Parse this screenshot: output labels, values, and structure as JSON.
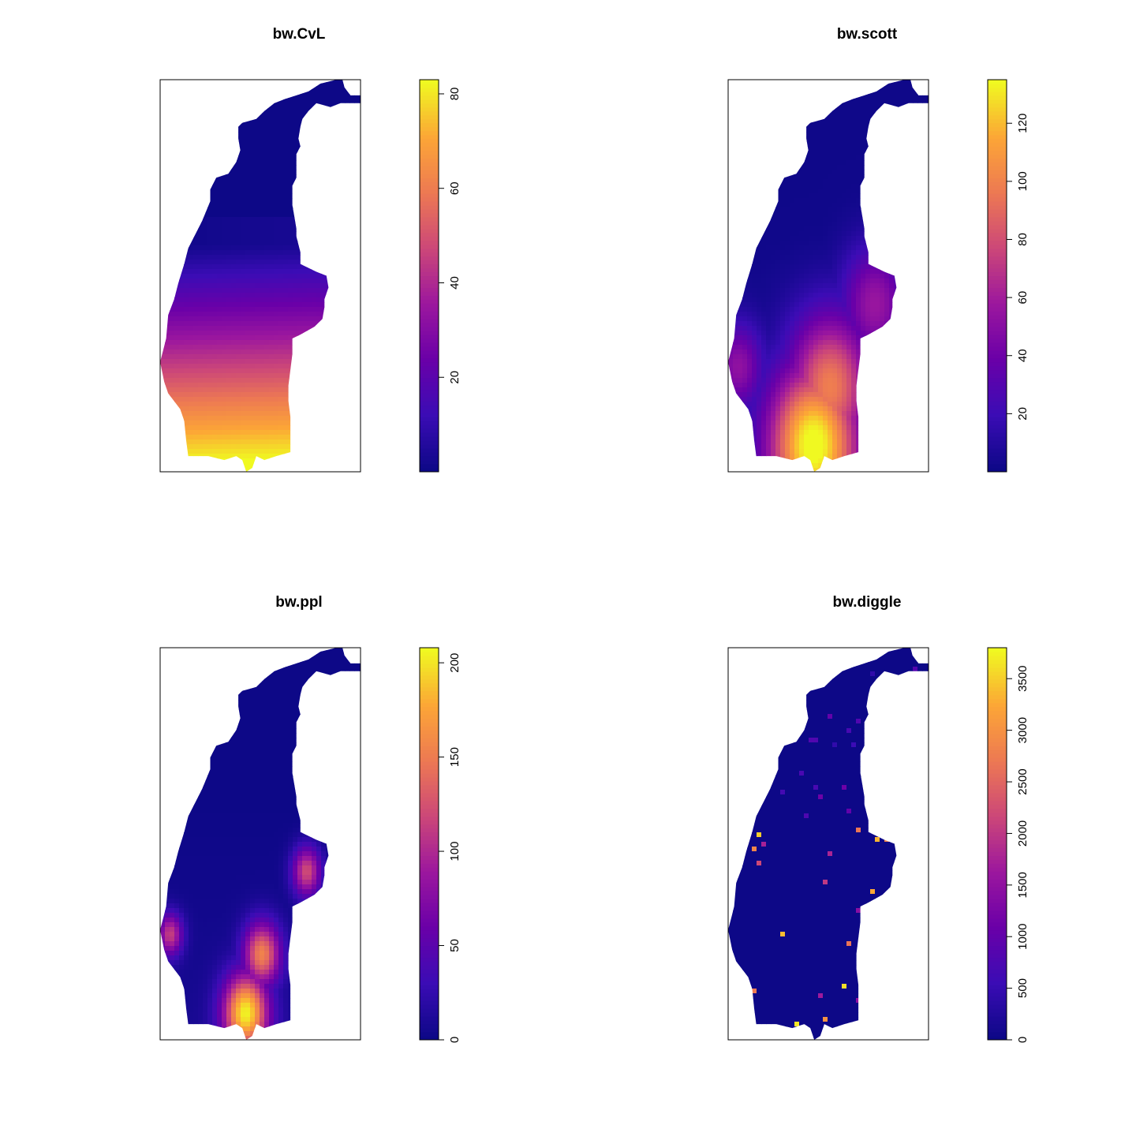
{
  "chart_data": [
    {
      "type": "heatmap",
      "title": "bw.CvL",
      "xlabel": "",
      "ylabel": "",
      "legend_placement": "right",
      "colorbar": {
        "range": [
          0,
          83
        ],
        "ticks": [
          20,
          40,
          60,
          80
        ]
      },
      "hotspots": [
        {
          "label": "south",
          "value": 83
        },
        {
          "label": "middle band",
          "value": 30
        },
        {
          "label": "north",
          "value": 2
        }
      ]
    },
    {
      "type": "heatmap",
      "title": "bw.scott",
      "xlabel": "",
      "ylabel": "",
      "legend_placement": "right",
      "colorbar": {
        "range": [
          0,
          135
        ],
        "ticks": [
          20,
          40,
          60,
          80,
          100,
          120
        ]
      },
      "hotspots": [
        {
          "label": "south",
          "value": 135
        },
        {
          "label": "south-central",
          "value": 95
        },
        {
          "label": "east lobe",
          "value": 55
        },
        {
          "label": "west edge",
          "value": 50
        },
        {
          "label": "north",
          "value": 1
        }
      ]
    },
    {
      "type": "heatmap",
      "title": "bw.ppl",
      "xlabel": "",
      "ylabel": "",
      "legend_placement": "right",
      "colorbar": {
        "range": [
          0,
          208
        ],
        "ticks": [
          0,
          50,
          100,
          150,
          200
        ]
      },
      "hotspots": [
        {
          "label": "south",
          "value": 200
        },
        {
          "label": "south-central",
          "value": 150
        },
        {
          "label": "east lobe",
          "value": 120
        },
        {
          "label": "west edge",
          "value": 110
        },
        {
          "label": "north",
          "value": 0
        }
      ]
    },
    {
      "type": "heatmap",
      "title": "bw.diggle",
      "xlabel": "",
      "ylabel": "",
      "legend_placement": "right",
      "colorbar": {
        "range": [
          0,
          3800
        ],
        "ticks": [
          0,
          500,
          1000,
          1500,
          2000,
          2500,
          3000,
          3500
        ]
      },
      "hotspots": [
        {
          "label": "scattered points",
          "value": 3800
        },
        {
          "label": "background",
          "value": 0
        }
      ]
    }
  ],
  "colors": {
    "palette": [
      "#0D0887",
      "#3B0CB5",
      "#6A00A8",
      "#9C179E",
      "#CC4778",
      "#ED7953",
      "#FCA636",
      "#F0F921"
    ],
    "frame": "#000000",
    "background": "#FFFFFF"
  }
}
